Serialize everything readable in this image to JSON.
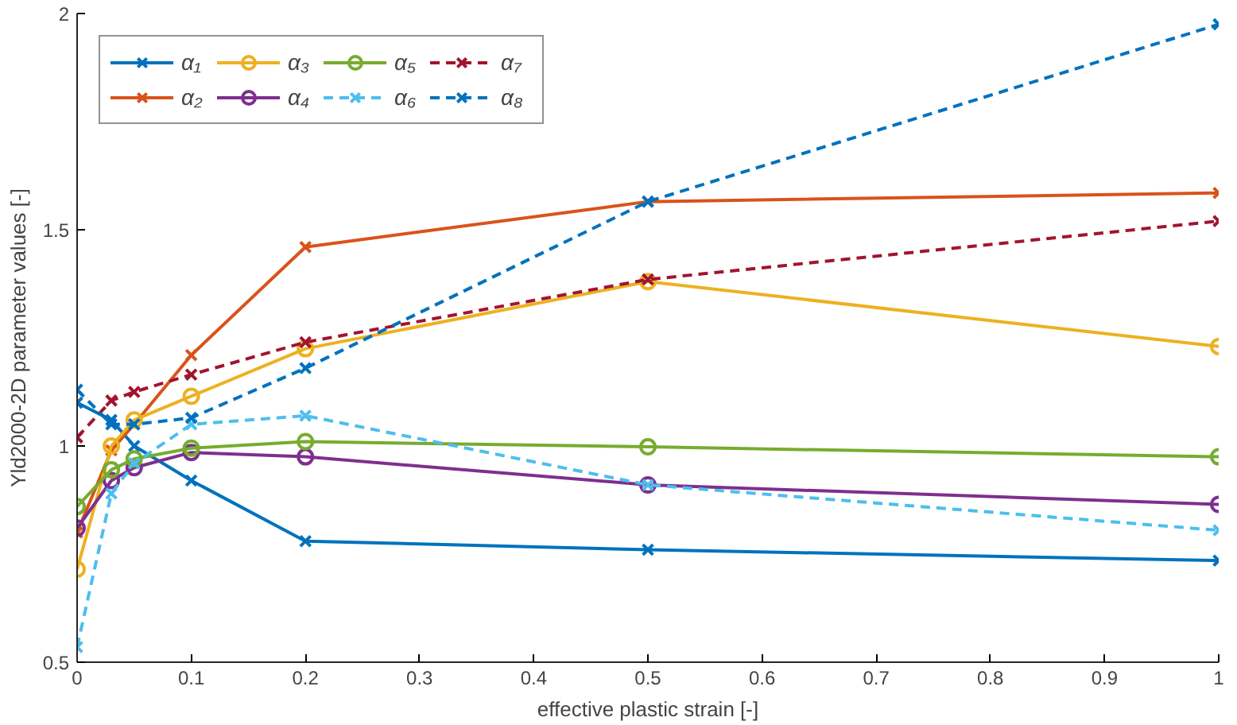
{
  "chart_data": {
    "type": "line",
    "xlabel": "effective plastic strain [-]",
    "ylabel": "Yld2000-2D parameter values [-]",
    "x": [
      0,
      0.03,
      0.05,
      0.1,
      0.2,
      0.5,
      1
    ],
    "xlim": [
      0,
      1
    ],
    "xticks": [
      0,
      0.1,
      0.2,
      0.3,
      0.4,
      0.5,
      0.6,
      0.7,
      0.8,
      0.9,
      1
    ],
    "ylim": [
      0.5,
      2
    ],
    "yticks": [
      0.5,
      1,
      1.5,
      2
    ],
    "grid": false,
    "legend": "top left",
    "series": [
      {
        "name": "α₁",
        "color": "#0072bd",
        "marker": "cross",
        "line_style": "solid",
        "values": [
          1.1,
          1.06,
          1.0,
          0.92,
          0.78,
          0.76,
          0.735
        ]
      },
      {
        "name": "α₂",
        "color": "#d95319",
        "marker": "cross",
        "line_style": "solid",
        "values": [
          0.8,
          0.99,
          1.05,
          1.21,
          1.46,
          1.565,
          1.585
        ]
      },
      {
        "name": "α₃",
        "color": "#edb120",
        "marker": "circle",
        "line_style": "solid",
        "values": [
          0.715,
          1.0,
          1.06,
          1.115,
          1.225,
          1.38,
          1.23
        ]
      },
      {
        "name": "α₄",
        "color": "#7e2f8e",
        "marker": "circle",
        "line_style": "solid",
        "values": [
          0.81,
          0.92,
          0.95,
          0.985,
          0.975,
          0.91,
          0.865
        ]
      },
      {
        "name": "α₅",
        "color": "#77ac30",
        "marker": "circle",
        "line_style": "solid",
        "values": [
          0.86,
          0.945,
          0.97,
          0.995,
          1.01,
          0.998,
          0.975
        ]
      },
      {
        "name": "α₆",
        "color": "#4dbeee",
        "marker": "cross",
        "line_style": "dashed",
        "values": [
          0.535,
          0.89,
          0.96,
          1.05,
          1.07,
          0.91,
          0.805
        ]
      },
      {
        "name": "α₇",
        "color": "#a2142f",
        "marker": "cross",
        "line_style": "dashed",
        "values": [
          1.02,
          1.105,
          1.125,
          1.165,
          1.24,
          1.385,
          1.52
        ]
      },
      {
        "name": "α₈",
        "color": "#0072bd",
        "marker": "cross",
        "line_style": "dashed",
        "values": [
          1.13,
          1.05,
          1.05,
          1.065,
          1.18,
          1.565,
          1.975
        ]
      }
    ]
  }
}
